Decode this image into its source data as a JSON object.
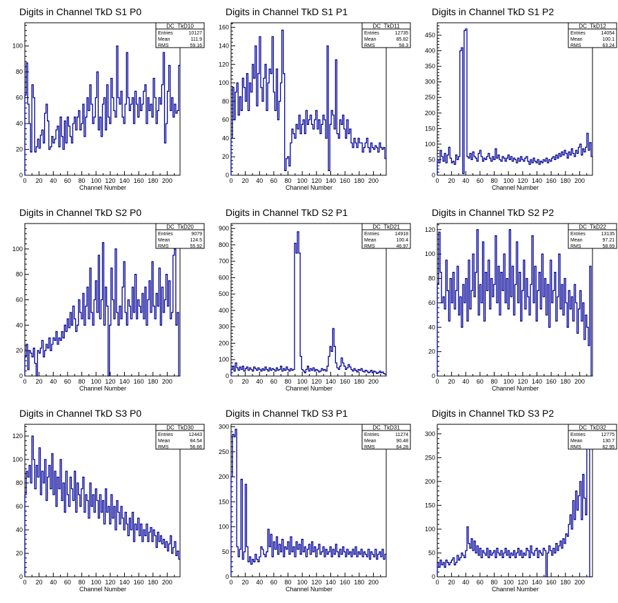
{
  "chart_data": [
    {
      "type": "line",
      "title": "Digits in Channel TkD S1 P0",
      "xlabel": "Channel Number",
      "xlim": [
        0,
        218
      ],
      "ylim": [
        0,
        118
      ],
      "xticks": [
        0,
        20,
        40,
        60,
        80,
        100,
        120,
        140,
        160,
        180,
        200
      ],
      "yticks": [
        0,
        20,
        40,
        60,
        80,
        100
      ],
      "stats": {
        "name": "DC_TkD10",
        "entries": "10127",
        "mean": "111.9",
        "rms": "59.16"
      },
      "y": [
        62,
        87,
        55,
        40,
        18,
        70,
        60,
        18,
        22,
        28,
        21,
        31,
        35,
        25,
        48,
        55,
        42,
        20,
        22,
        30,
        25,
        28,
        35,
        38,
        22,
        45,
        30,
        20,
        42,
        25,
        45,
        38,
        30,
        25,
        40,
        45,
        35,
        45,
        50,
        35,
        40,
        55,
        30,
        45,
        60,
        50,
        70,
        55,
        40,
        45,
        60,
        80,
        35,
        45,
        30,
        55,
        60,
        35,
        70,
        45,
        40,
        75,
        60,
        50,
        45,
        100,
        60,
        55,
        65,
        45,
        40,
        55,
        95,
        60,
        50,
        55,
        60,
        40,
        65,
        55,
        45,
        60,
        50,
        55,
        65,
        70,
        40,
        60,
        50,
        55,
        45,
        75,
        60,
        40,
        50,
        60,
        55,
        70,
        95,
        25,
        40,
        65,
        85,
        50,
        60,
        45,
        55,
        48,
        50,
        85
      ]
    },
    {
      "type": "line",
      "title": "Digits in Channel TkD S1 P1",
      "xlabel": "Channel Number",
      "xlim": [
        0,
        218
      ],
      "ylim": [
        0,
        165
      ],
      "xticks": [
        0,
        20,
        40,
        60,
        80,
        100,
        120,
        140,
        160,
        180,
        200
      ],
      "yticks": [
        0,
        20,
        40,
        60,
        80,
        100,
        120,
        140,
        160
      ],
      "stats": {
        "name": "DC_TkD11",
        "entries": "12735",
        "mean": "85.82",
        "rms": "58.3"
      },
      "y": [
        40,
        95,
        60,
        90,
        100,
        65,
        85,
        70,
        105,
        95,
        80,
        110,
        70,
        100,
        90,
        120,
        105,
        140,
        75,
        110,
        150,
        95,
        80,
        105,
        120,
        70,
        100,
        115,
        110,
        150,
        90,
        70,
        115,
        60,
        80,
        100,
        157,
        110,
        5,
        18,
        20,
        10,
        35,
        50,
        45,
        40,
        55,
        50,
        65,
        45,
        55,
        60,
        45,
        70,
        55,
        60,
        65,
        55,
        50,
        60,
        70,
        50,
        60,
        45,
        55,
        65,
        60,
        40,
        140,
        5,
        55,
        70,
        65,
        50,
        125,
        45,
        40,
        60,
        55,
        65,
        50,
        40,
        60,
        45,
        50,
        35,
        30,
        40,
        35,
        30,
        40,
        35,
        35,
        25,
        30,
        35,
        40,
        30,
        25,
        35,
        30,
        28,
        32,
        30,
        25,
        35,
        30,
        28,
        30,
        18
      ]
    },
    {
      "type": "line",
      "title": "Digits in Channel TkD S1 P2",
      "xlabel": "Channel Number",
      "xlim": [
        0,
        218
      ],
      "ylim": [
        0,
        490
      ],
      "xticks": [
        0,
        20,
        40,
        60,
        80,
        100,
        120,
        140,
        160,
        180,
        200
      ],
      "yticks": [
        0,
        50,
        100,
        150,
        200,
        250,
        300,
        350,
        400,
        450
      ],
      "stats": {
        "name": "DC_TkD12",
        "entries": "14054",
        "mean": "100.1",
        "rms": "63.24"
      },
      "y": [
        50,
        40,
        80,
        60,
        45,
        70,
        40,
        65,
        90,
        55,
        40,
        45,
        35,
        65,
        50,
        60,
        400,
        410,
        5,
        465,
        470,
        60,
        55,
        70,
        50,
        75,
        60,
        55,
        45,
        70,
        80,
        60,
        45,
        55,
        50,
        60,
        70,
        55,
        45,
        60,
        50,
        85,
        55,
        65,
        50,
        45,
        60,
        55,
        45,
        55,
        65,
        50,
        60,
        45,
        55,
        50,
        40,
        55,
        45,
        60,
        50,
        45,
        55,
        60,
        45,
        35,
        50,
        40,
        55,
        45,
        40,
        50,
        35,
        45,
        40,
        50,
        45,
        55,
        40,
        50,
        45,
        55,
        60,
        50,
        65,
        55,
        70,
        60,
        75,
        65,
        80,
        70,
        55,
        75,
        65,
        85,
        70,
        60,
        80,
        70,
        90,
        100,
        65,
        85,
        75,
        90,
        135,
        80,
        105,
        60
      ]
    },
    {
      "type": "line",
      "title": "Digits in Channel TkD S2 P0",
      "xlabel": "Channel Number",
      "xlim": [
        0,
        218
      ],
      "ylim": [
        0,
        120
      ],
      "xticks": [
        0,
        20,
        40,
        60,
        80,
        100,
        120,
        140,
        160,
        180,
        200
      ],
      "yticks": [
        0,
        20,
        40,
        60,
        80,
        100
      ],
      "stats": {
        "name": "DC_TkD20",
        "entries": "9079",
        "mean": "124.5",
        "rms": "55.92"
      },
      "y": [
        15,
        25,
        5,
        20,
        18,
        15,
        22,
        10,
        0,
        20,
        18,
        22,
        28,
        15,
        20,
        25,
        22,
        30,
        20,
        25,
        30,
        28,
        35,
        25,
        30,
        28,
        35,
        30,
        40,
        35,
        45,
        38,
        50,
        40,
        55,
        45,
        35,
        40,
        60,
        50,
        45,
        65,
        40,
        55,
        70,
        45,
        85,
        50,
        40,
        60,
        75,
        50,
        95,
        45,
        60,
        105,
        40,
        70,
        55,
        0,
        40,
        85,
        60,
        45,
        100,
        50,
        40,
        55,
        45,
        70,
        90,
        50,
        40,
        60,
        55,
        45,
        70,
        50,
        80,
        45,
        60,
        55,
        50,
        65,
        45,
        70,
        40,
        60,
        75,
        50,
        90,
        55,
        45,
        65,
        55,
        85,
        40,
        70,
        50,
        60,
        80,
        55,
        75,
        45,
        50,
        95,
        100,
        40,
        50,
        0
      ]
    },
    {
      "type": "line",
      "title": "Digits in Channel TkD S2 P1",
      "xlabel": "Channel Number",
      "xlim": [
        0,
        218
      ],
      "ylim": [
        0,
        930
      ],
      "xticks": [
        0,
        20,
        40,
        60,
        80,
        100,
        120,
        140,
        160,
        180,
        200
      ],
      "yticks": [
        0,
        100,
        200,
        300,
        400,
        500,
        600,
        700,
        800,
        900
      ],
      "stats": {
        "name": "DC_TkD21",
        "entries": "14918",
        "mean": "100.4",
        "rms": "46.97"
      },
      "y": [
        40,
        60,
        30,
        80,
        50,
        35,
        55,
        40,
        60,
        30,
        45,
        55,
        35,
        50,
        40,
        30,
        55,
        45,
        35,
        50,
        40,
        30,
        45,
        35,
        55,
        40,
        30,
        50,
        35,
        45,
        40,
        30,
        50,
        35,
        40,
        60,
        30,
        45,
        35,
        55,
        40,
        30,
        45,
        35,
        40,
        810,
        750,
        880,
        750,
        120,
        40,
        30,
        20,
        40,
        60,
        30,
        45,
        35,
        50,
        30,
        40,
        35,
        25,
        30,
        45,
        35,
        40,
        30,
        60,
        120,
        180,
        150,
        290,
        180,
        80,
        50,
        40,
        60,
        110,
        80,
        60,
        40,
        50,
        70,
        55,
        40,
        30,
        45,
        35,
        25,
        40,
        35,
        45,
        30,
        25,
        35,
        30,
        20,
        25,
        35,
        20,
        30,
        25,
        15,
        20,
        30,
        20,
        25,
        15,
        10
      ]
    },
    {
      "type": "line",
      "title": "Digits in Channel TkD S2 P2",
      "xlabel": "Channel Number",
      "xlim": [
        0,
        218
      ],
      "ylim": [
        0,
        125
      ],
      "xticks": [
        0,
        20,
        40,
        60,
        80,
        100,
        120,
        140,
        160,
        180,
        200
      ],
      "yticks": [
        0,
        20,
        40,
        60,
        80,
        100,
        120
      ],
      "stats": {
        "name": "DC_TkD22",
        "entries": "13135",
        "mean": "97.21",
        "rms": "58.69"
      },
      "y": [
        75,
        118,
        85,
        60,
        65,
        55,
        95,
        70,
        45,
        80,
        60,
        85,
        55,
        70,
        90,
        50,
        65,
        40,
        75,
        60,
        80,
        45,
        95,
        55,
        70,
        100,
        65,
        85,
        120,
        50,
        75,
        60,
        110,
        45,
        85,
        70,
        95,
        55,
        80,
        65,
        75,
        115,
        60,
        90,
        50,
        85,
        70,
        100,
        60,
        80,
        55,
        120,
        65,
        90,
        50,
        75,
        110,
        60,
        85,
        45,
        70,
        95,
        55,
        80,
        65,
        50,
        75,
        115,
        60,
        90,
        45,
        70,
        85,
        55,
        100,
        65,
        80,
        50,
        75,
        40,
        95,
        60,
        70,
        85,
        45,
        65,
        100,
        55,
        75,
        50,
        80,
        60,
        40,
        70,
        55,
        65,
        45,
        75,
        60,
        35,
        55,
        70,
        45,
        60,
        30,
        50,
        40,
        25,
        90,
        0
      ]
    },
    {
      "type": "line",
      "title": "Digits in Channel TkD S3 P0",
      "xlabel": "Channel Number",
      "xlim": [
        0,
        218
      ],
      "ylim": [
        0,
        130
      ],
      "xticks": [
        0,
        20,
        40,
        60,
        80,
        100,
        120,
        140,
        160,
        180,
        200
      ],
      "yticks": [
        0,
        20,
        40,
        60,
        80,
        100,
        120
      ],
      "stats": {
        "name": "DC_TkD30",
        "entries": "12443",
        "mean": "84.54",
        "rms": "56.66"
      },
      "y": [
        70,
        90,
        85,
        95,
        80,
        120,
        100,
        75,
        95,
        85,
        110,
        70,
        90,
        80,
        100,
        65,
        85,
        95,
        75,
        105,
        70,
        90,
        60,
        85,
        75,
        100,
        65,
        80,
        55,
        90,
        70,
        60,
        85,
        75,
        65,
        90,
        55,
        80,
        70,
        60,
        75,
        85,
        55,
        70,
        65,
        50,
        80,
        60,
        70,
        55,
        75,
        65,
        50,
        70,
        55,
        65,
        45,
        75,
        55,
        60,
        45,
        70,
        50,
        60,
        40,
        65,
        55,
        45,
        60,
        50,
        40,
        55,
        45,
        35,
        50,
        40,
        55,
        30,
        45,
        40,
        50,
        35,
        45,
        30,
        40,
        35,
        45,
        30,
        38,
        42,
        30,
        40,
        35,
        25,
        38,
        30,
        35,
        28,
        32,
        25,
        30,
        22,
        28,
        35,
        20,
        25,
        30,
        18,
        22,
        15
      ]
    },
    {
      "type": "line",
      "title": "Digits in Channel TkD S3 P1",
      "xlabel": "Channel Number",
      "xlim": [
        0,
        218
      ],
      "ylim": [
        0,
        305
      ],
      "xticks": [
        0,
        20,
        40,
        60,
        80,
        100,
        120,
        140,
        160,
        180,
        200
      ],
      "yticks": [
        0,
        50,
        100,
        150,
        200,
        250,
        300
      ],
      "stats": {
        "name": "DC_TkD31",
        "entries": "11274",
        "mean": "90.48",
        "rms": "64.28"
      },
      "y": [
        200,
        285,
        280,
        295,
        60,
        40,
        55,
        195,
        35,
        50,
        185,
        60,
        30,
        40,
        25,
        35,
        30,
        45,
        35,
        30,
        40,
        60,
        55,
        45,
        40,
        50,
        95,
        60,
        85,
        40,
        70,
        55,
        80,
        45,
        65,
        50,
        75,
        40,
        60,
        55,
        70,
        45,
        80,
        50,
        60,
        40,
        70,
        55,
        65,
        45,
        75,
        50,
        60,
        40,
        55,
        65,
        45,
        70,
        50,
        60,
        40,
        55,
        65,
        45,
        50,
        60,
        40,
        55,
        45,
        50,
        60,
        40,
        55,
        45,
        65,
        50,
        40,
        55,
        45,
        60,
        50,
        40,
        55,
        45,
        50,
        40,
        55,
        45,
        60,
        40,
        50,
        45,
        55,
        40,
        50,
        45,
        40,
        55,
        35,
        50,
        45,
        40,
        55,
        35,
        45,
        50,
        40,
        55,
        35,
        45
      ]
    },
    {
      "type": "line",
      "title": "Digits in Channel TkD S3 P2",
      "xlabel": "Channel Number",
      "xlim": [
        0,
        218
      ],
      "ylim": [
        0,
        320
      ],
      "xticks": [
        0,
        20,
        40,
        60,
        80,
        100,
        120,
        140,
        160,
        180,
        200
      ],
      "yticks": [
        0,
        50,
        100,
        150,
        200,
        250,
        300
      ],
      "stats": {
        "name": "DC_TkD32",
        "entries": "12775",
        "mean": "130.7",
        "rms": "62.95"
      },
      "y": [
        30,
        20,
        35,
        25,
        30,
        20,
        35,
        30,
        25,
        30,
        35,
        40,
        25,
        30,
        45,
        35,
        40,
        50,
        45,
        40,
        55,
        105,
        70,
        60,
        80,
        55,
        75,
        50,
        65,
        45,
        60,
        40,
        55,
        50,
        45,
        60,
        40,
        55,
        45,
        50,
        55,
        40,
        60,
        50,
        45,
        55,
        40,
        50,
        60,
        45,
        55,
        40,
        50,
        45,
        55,
        40,
        50,
        60,
        45,
        55,
        40,
        50,
        45,
        60,
        55,
        40,
        65,
        50,
        45,
        55,
        60,
        40,
        55,
        50,
        45,
        60,
        55,
        0,
        50,
        65,
        55,
        45,
        60,
        50,
        70,
        55,
        65,
        75,
        60,
        80,
        70,
        90,
        85,
        110,
        130,
        100,
        160,
        120,
        180,
        140,
        170,
        200,
        120,
        215,
        165,
        130,
        280,
        270,
        0,
        0
      ]
    }
  ]
}
